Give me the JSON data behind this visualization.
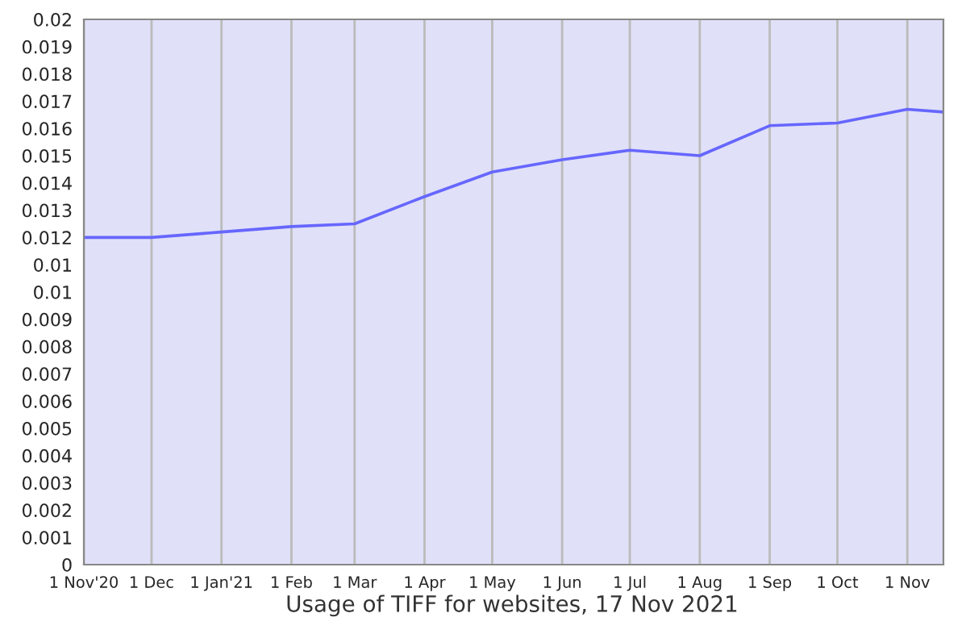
{
  "chart_data": {
    "type": "line",
    "annotations": [
      "Usage of TIFF for websites, 17 Nov 2021"
    ],
    "x": [
      "2020-11-01",
      "2020-12-01",
      "2021-01-01",
      "2021-02-01",
      "2021-03-01",
      "2021-04-01",
      "2021-05-01",
      "2021-06-01",
      "2021-07-01",
      "2021-08-01",
      "2021-09-01",
      "2021-10-01",
      "2021-11-01",
      "2021-11-17"
    ],
    "series": [
      {
        "color": "#6666ff",
        "values": [
          0.012,
          0.012,
          0.0122,
          0.0124,
          0.0125,
          0.0135,
          0.0144,
          0.01485,
          0.0152,
          0.015,
          0.0161,
          0.0162,
          0.0167,
          0.0166
        ]
      }
    ],
    "xlim": [
      "2020-11-01",
      "2021-11-17"
    ],
    "xticks": [
      {
        "value": "2020-11-01",
        "label": "1 Nov'20"
      },
      {
        "value": "2020-12-01",
        "label": "1 Dec"
      },
      {
        "value": "2021-01-01",
        "label": "1 Jan'21"
      },
      {
        "value": "2021-02-01",
        "label": "1 Feb"
      },
      {
        "value": "2021-03-01",
        "label": "1 Mar"
      },
      {
        "value": "2021-04-01",
        "label": "1 Apr"
      },
      {
        "value": "2021-05-01",
        "label": "1 May"
      },
      {
        "value": "2021-06-01",
        "label": "1 Jun"
      },
      {
        "value": "2021-07-01",
        "label": "1 Jul"
      },
      {
        "value": "2021-08-01",
        "label": "1 Aug"
      },
      {
        "value": "2021-09-01",
        "label": "1 Sep"
      },
      {
        "value": "2021-10-01",
        "label": "1 Oct"
      },
      {
        "value": "2021-11-01",
        "label": "1 Nov"
      }
    ],
    "ylim": [
      0,
      0.02
    ],
    "yticks": [
      0,
      0.001,
      0.002,
      0.003,
      0.004,
      0.005,
      0.006,
      0.007,
      0.008,
      0.009,
      {
        "value": 0.01,
        "label": "0.01"
      },
      {
        "value": 0.011,
        "label": "0.01"
      },
      0.012,
      0.013,
      0.014,
      0.015,
      0.016,
      0.017,
      0.018,
      0.019,
      {
        "value": 0.02,
        "label": "0.02"
      }
    ],
    "grid": "x",
    "marker": "none",
    "line_style": "solid"
  }
}
